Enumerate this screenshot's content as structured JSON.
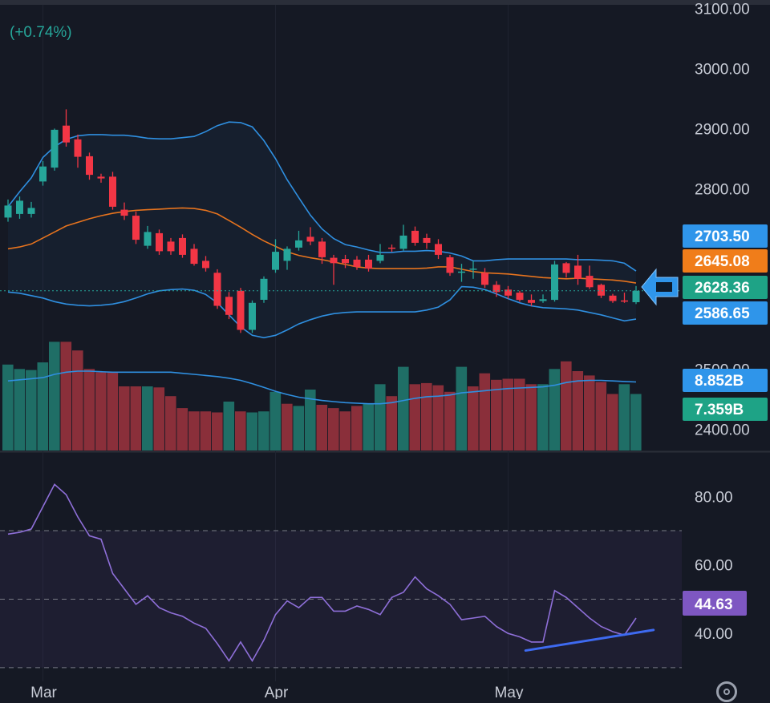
{
  "header": {
    "change_text": "(+0.74%)"
  },
  "icons": {
    "settings": "gear-icon",
    "price_marker": "arrow-left-icon"
  },
  "colors": {
    "background": "#151924",
    "up": "#26a69a",
    "down": "#f23645",
    "vol_up": "#1f6e66",
    "vol_down": "#8a2f3a",
    "band": "#2f8fe0",
    "basis": "#e6731e",
    "rsi": "#8e6fd8",
    "trendline": "#3e6af0",
    "label_blue": "#2f95ea",
    "label_orange": "#f07d1a",
    "label_green": "#1ea386",
    "label_purple": "#7e57c2"
  },
  "chart_data": [
    {
      "type": "candlestick",
      "title": "",
      "y_range": [
        2367,
        3110
      ],
      "y_ticks": [
        "3100.00",
        "3000.00",
        "2900.00",
        "2800.00",
        "2500.00",
        "2400.00"
      ],
      "x_ticks": [
        {
          "label": "Mar",
          "index": 3
        },
        {
          "label": "Apr",
          "index": 23
        },
        {
          "label": "May",
          "index": 43
        }
      ],
      "candles": [
        [
          2752,
          2772,
          2745,
          2782
        ],
        [
          2758,
          2780,
          2750,
          2787
        ],
        [
          2758,
          2768,
          2752,
          2778
        ],
        [
          2812,
          2837,
          2805,
          2846
        ],
        [
          2835,
          2898,
          2830,
          2900
        ],
        [
          2905,
          2877,
          2870,
          2932
        ],
        [
          2882,
          2853,
          2835,
          2890
        ],
        [
          2854,
          2823,
          2815,
          2860
        ],
        [
          2820,
          2817,
          2810,
          2825
        ],
        [
          2820,
          2770,
          2765,
          2828
        ],
        [
          2765,
          2755,
          2748,
          2777
        ],
        [
          2755,
          2715,
          2708,
          2762
        ],
        [
          2705,
          2728,
          2700,
          2738
        ],
        [
          2726,
          2696,
          2690,
          2732
        ],
        [
          2712,
          2696,
          2690,
          2718
        ],
        [
          2718,
          2690,
          2685,
          2724
        ],
        [
          2700,
          2675,
          2672,
          2708
        ],
        [
          2680,
          2668,
          2662,
          2688
        ],
        [
          2660,
          2605,
          2600,
          2666
        ],
        [
          2620,
          2590,
          2583,
          2628
        ],
        [
          2630,
          2565,
          2560,
          2635
        ],
        [
          2565,
          2610,
          2560,
          2614
        ],
        [
          2615,
          2650,
          2610,
          2654
        ],
        [
          2665,
          2695,
          2660,
          2716
        ],
        [
          2680,
          2700,
          2665,
          2704
        ],
        [
          2702,
          2714,
          2697,
          2730
        ],
        [
          2720,
          2712,
          2706,
          2736
        ],
        [
          2712,
          2686,
          2675,
          2718
        ],
        [
          2685,
          2676,
          2640,
          2690
        ],
        [
          2683,
          2676,
          2668,
          2690
        ],
        [
          2682,
          2670,
          2665,
          2688
        ],
        [
          2682,
          2667,
          2662,
          2690
        ],
        [
          2680,
          2690,
          2676,
          2708
        ],
        [
          2702,
          2700,
          2695,
          2707
        ],
        [
          2700,
          2722,
          2697,
          2740
        ],
        [
          2730,
          2710,
          2705,
          2737
        ],
        [
          2718,
          2710,
          2700,
          2725
        ],
        [
          2708,
          2690,
          2683,
          2716
        ],
        [
          2686,
          2660,
          2655,
          2690
        ],
        [
          2660,
          2662,
          2645,
          2675
        ],
        [
          2665,
          2667,
          2650,
          2680
        ],
        [
          2660,
          2640,
          2635,
          2668
        ],
        [
          2640,
          2628,
          2620,
          2646
        ],
        [
          2632,
          2622,
          2617,
          2638
        ],
        [
          2627,
          2615,
          2612,
          2630
        ],
        [
          2615,
          2610,
          2605,
          2624
        ],
        [
          2613,
          2616,
          2610,
          2624
        ],
        [
          2615,
          2674,
          2612,
          2680
        ],
        [
          2676,
          2660,
          2652,
          2678
        ],
        [
          2672,
          2650,
          2640,
          2690
        ],
        [
          2655,
          2636,
          2633,
          2672
        ],
        [
          2640,
          2622,
          2618,
          2642
        ],
        [
          2622,
          2613,
          2610,
          2625
        ],
        [
          2614,
          2612,
          2610,
          2627
        ],
        [
          2611,
          2630,
          2608,
          2638
        ]
      ],
      "bollinger": {
        "upper": [
          2770,
          2795,
          2818,
          2852,
          2870,
          2882,
          2888,
          2890,
          2890,
          2889,
          2889,
          2887,
          2884,
          2883,
          2883,
          2885,
          2887,
          2895,
          2905,
          2911,
          2910,
          2903,
          2880,
          2850,
          2815,
          2785,
          2756,
          2733,
          2717,
          2707,
          2703,
          2698,
          2694,
          2694,
          2696,
          2696,
          2697,
          2696,
          2693,
          2688,
          2680,
          2680,
          2682,
          2683,
          2683,
          2683,
          2683,
          2683,
          2683,
          2682,
          2682,
          2681,
          2680,
          2676,
          2663
        ],
        "basis": [
          2700,
          2703,
          2708,
          2718,
          2728,
          2738,
          2744,
          2750,
          2755,
          2759,
          2762,
          2764,
          2765,
          2766,
          2767,
          2768,
          2767,
          2764,
          2758,
          2747,
          2736,
          2724,
          2713,
          2704,
          2695,
          2689,
          2685,
          2682,
          2678,
          2674,
          2670,
          2668,
          2667,
          2667,
          2667,
          2667,
          2668,
          2670,
          2670,
          2666,
          2662,
          2660,
          2659,
          2658,
          2656,
          2654,
          2652,
          2651,
          2650,
          2651,
          2650,
          2649,
          2648,
          2646,
          2643
        ],
        "lower": [
          2628,
          2626,
          2622,
          2618,
          2612,
          2608,
          2606,
          2605,
          2606,
          2608,
          2612,
          2618,
          2625,
          2630,
          2632,
          2633,
          2631,
          2624,
          2610,
          2590,
          2570,
          2556,
          2552,
          2556,
          2565,
          2575,
          2582,
          2588,
          2592,
          2594,
          2595,
          2595,
          2595,
          2595,
          2595,
          2595,
          2598,
          2603,
          2615,
          2637,
          2636,
          2632,
          2625,
          2617,
          2610,
          2605,
          2602,
          2601,
          2600,
          2598,
          2594,
          2590,
          2585,
          2580,
          2583
        ]
      },
      "price_labels": [
        "2703.50",
        "2645.08",
        "2628.36",
        "2586.65"
      ],
      "volume": {
        "y_range": [
          0,
          10.1
        ],
        "axis_labels": [
          "8.852B",
          "7.359B"
        ],
        "values": [
          7.9,
          7.5,
          7.4,
          8.1,
          10.0,
          10.0,
          9.2,
          7.5,
          7.2,
          7.2,
          5.9,
          5.9,
          5.9,
          5.8,
          5.0,
          3.9,
          3.6,
          3.6,
          3.5,
          4.5,
          3.6,
          3.5,
          3.6,
          5.4,
          4.3,
          4.1,
          5.6,
          4.2,
          3.9,
          3.6,
          4.1,
          4.3,
          6.1,
          5.0,
          7.7,
          6.1,
          6.2,
          6.0,
          5.4,
          7.7,
          5.9,
          7.1,
          6.5,
          6.6,
          6.6,
          6.1,
          6.1,
          7.5,
          8.2,
          7.3,
          6.9,
          6.3,
          5.2,
          6.1,
          5.2
        ],
        "up": [
          true,
          true,
          true,
          true,
          true,
          false,
          false,
          false,
          false,
          false,
          false,
          false,
          true,
          false,
          false,
          false,
          false,
          false,
          false,
          true,
          false,
          true,
          true,
          true,
          false,
          true,
          true,
          false,
          false,
          false,
          false,
          true,
          true,
          false,
          true,
          false,
          false,
          false,
          false,
          true,
          false,
          false,
          false,
          false,
          false,
          false,
          true,
          true,
          false,
          false,
          false,
          false,
          false,
          true,
          true
        ],
        "ma": [
          6.4,
          6.5,
          6.6,
          6.7,
          7.0,
          7.2,
          7.3,
          7.3,
          7.25,
          7.2,
          7.2,
          7.2,
          7.2,
          7.2,
          7.2,
          7.1,
          7.0,
          6.9,
          6.8,
          6.65,
          6.45,
          6.15,
          5.8,
          5.45,
          5.15,
          4.9,
          4.75,
          4.6,
          4.5,
          4.4,
          4.35,
          4.3,
          4.3,
          4.4,
          4.6,
          4.8,
          4.95,
          5.0,
          5.1,
          5.3,
          5.4,
          5.5,
          5.6,
          5.7,
          5.75,
          5.8,
          5.85,
          6.0,
          6.25,
          6.4,
          6.45,
          6.45,
          6.4,
          6.35,
          6.3
        ]
      }
    },
    {
      "type": "line",
      "title": "",
      "y_range": [
        26,
        92
      ],
      "y_ticks": [
        "80.00",
        "60.00",
        "40.00"
      ],
      "levels": [
        70,
        50,
        30
      ],
      "rsi": [
        69,
        69.5,
        70.5,
        77,
        83.5,
        80.5,
        74,
        68.5,
        67.5,
        57.5,
        53,
        48.5,
        51,
        47.5,
        46,
        45,
        43,
        41.5,
        37,
        32,
        37.5,
        32,
        38,
        45.5,
        49.5,
        47.5,
        50.5,
        50.5,
        46.5,
        46.5,
        48,
        47,
        45.5,
        50.5,
        52,
        56.5,
        53,
        51,
        48.5,
        44,
        44.5,
        45,
        42,
        40,
        39,
        37.5,
        37.5,
        52.5,
        50.5,
        47.5,
        44.5,
        42,
        40.5,
        39.5,
        44.5
      ],
      "value_label": "44.63",
      "trendline": [
        [
          44.5,
          35
        ],
        [
          55.5,
          41
        ]
      ]
    }
  ]
}
